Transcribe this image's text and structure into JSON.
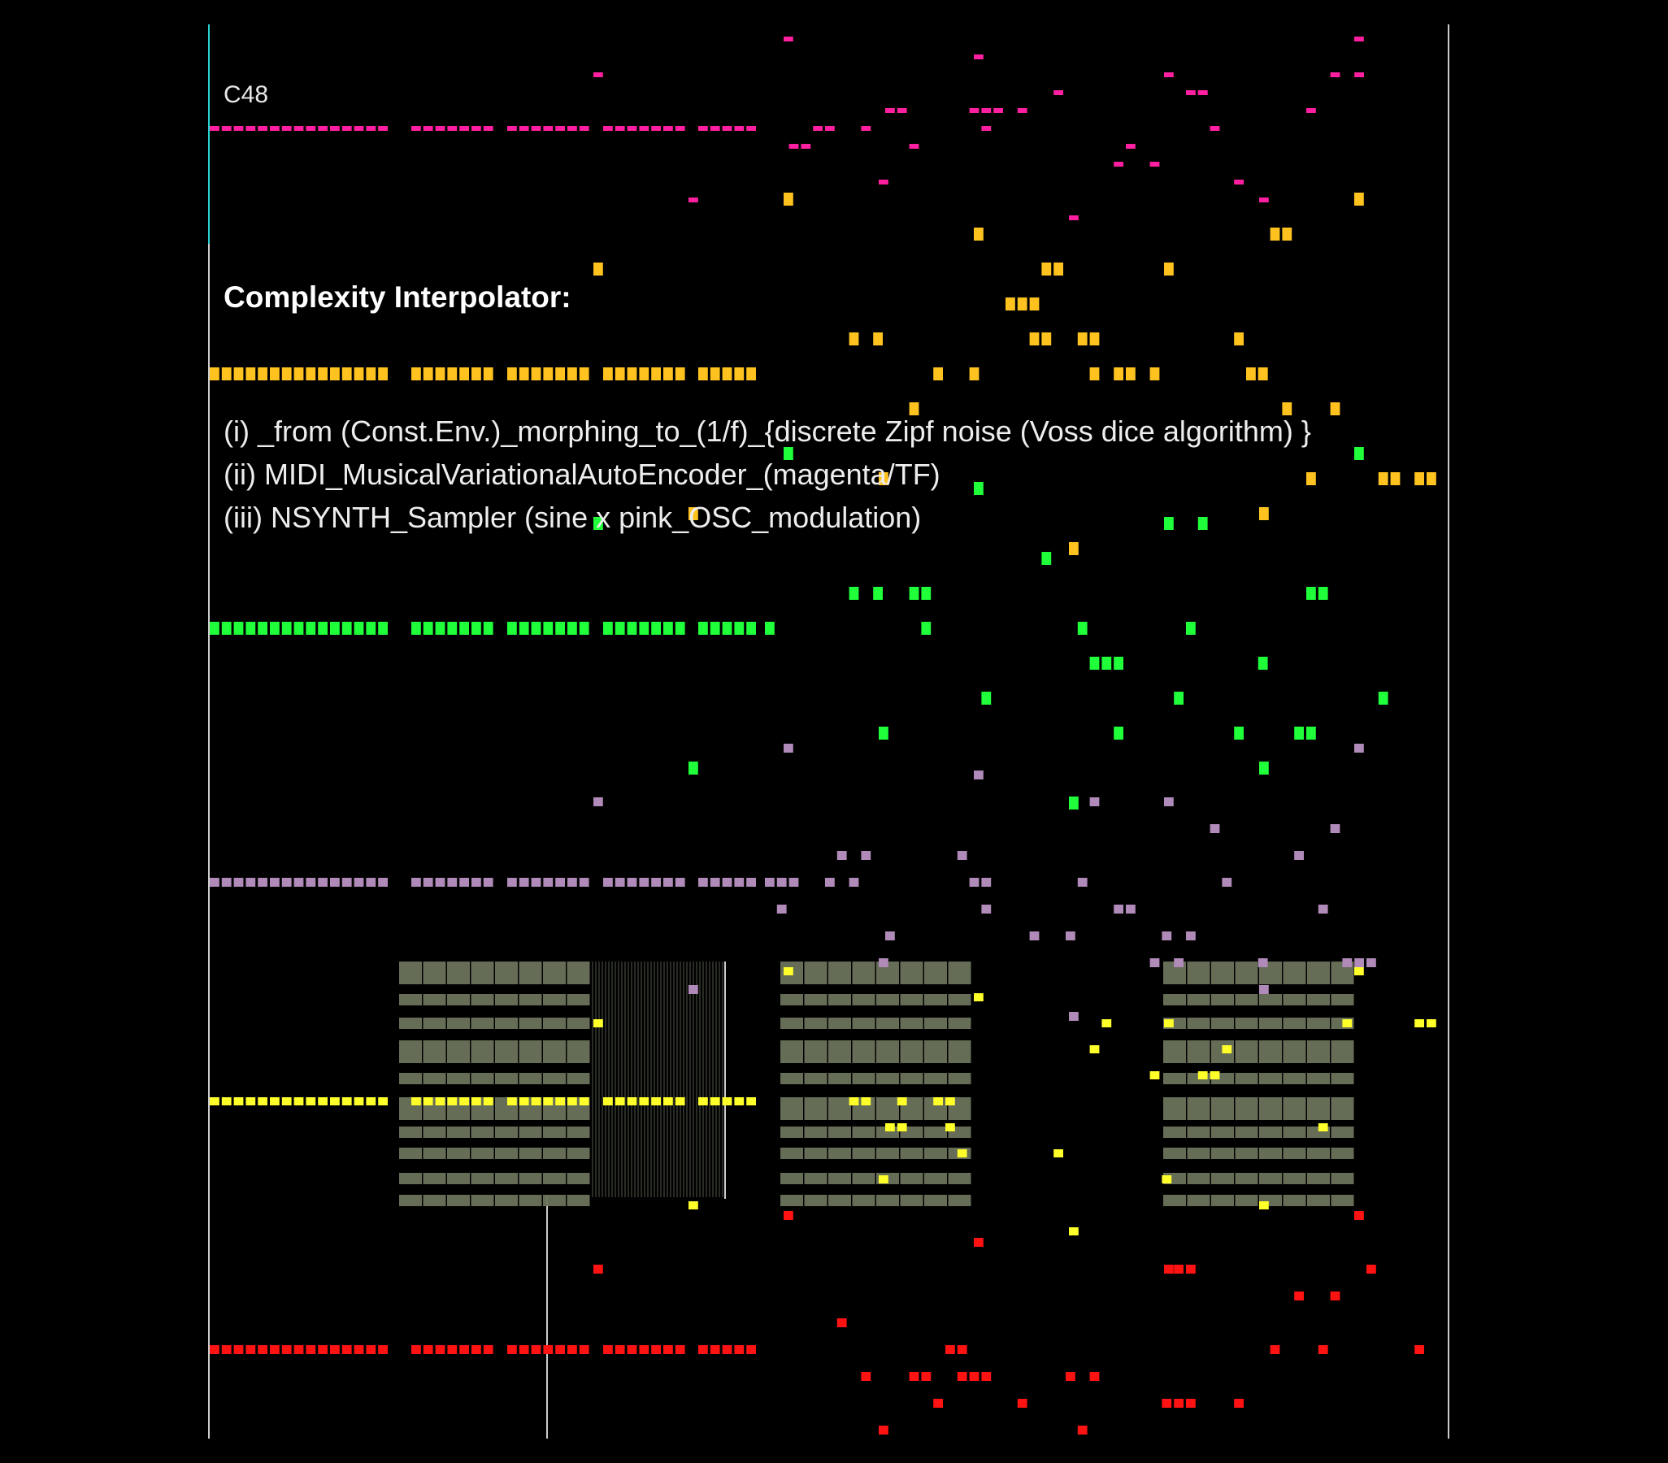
{
  "labels": {
    "note": "C48",
    "title": "Complexity Interpolator:",
    "lines": [
      "(i) _from (Const.Env.)_morphing_to_(1/f)_{discrete Zipf noise (Voss dice algorithm) }",
      "(ii) MIDI_MusicalVariationalAutoEncoder_(magenta/TF)",
      "(iii) NSYNTH_Sampler (sine x pink_OSC_modulation)"
    ]
  },
  "colors": {
    "background": "#000000",
    "track_pink": "#ff1fa0",
    "track_orange": "#ffc21f",
    "track_green": "#1fff3a",
    "track_lavender": "#b08ab8",
    "track_yellow": "#ffff2a",
    "track_red": "#ff1212",
    "grid_block": "#6b735c",
    "separator": "#cccccc",
    "cyan_line": "#2ad1d1"
  }
}
